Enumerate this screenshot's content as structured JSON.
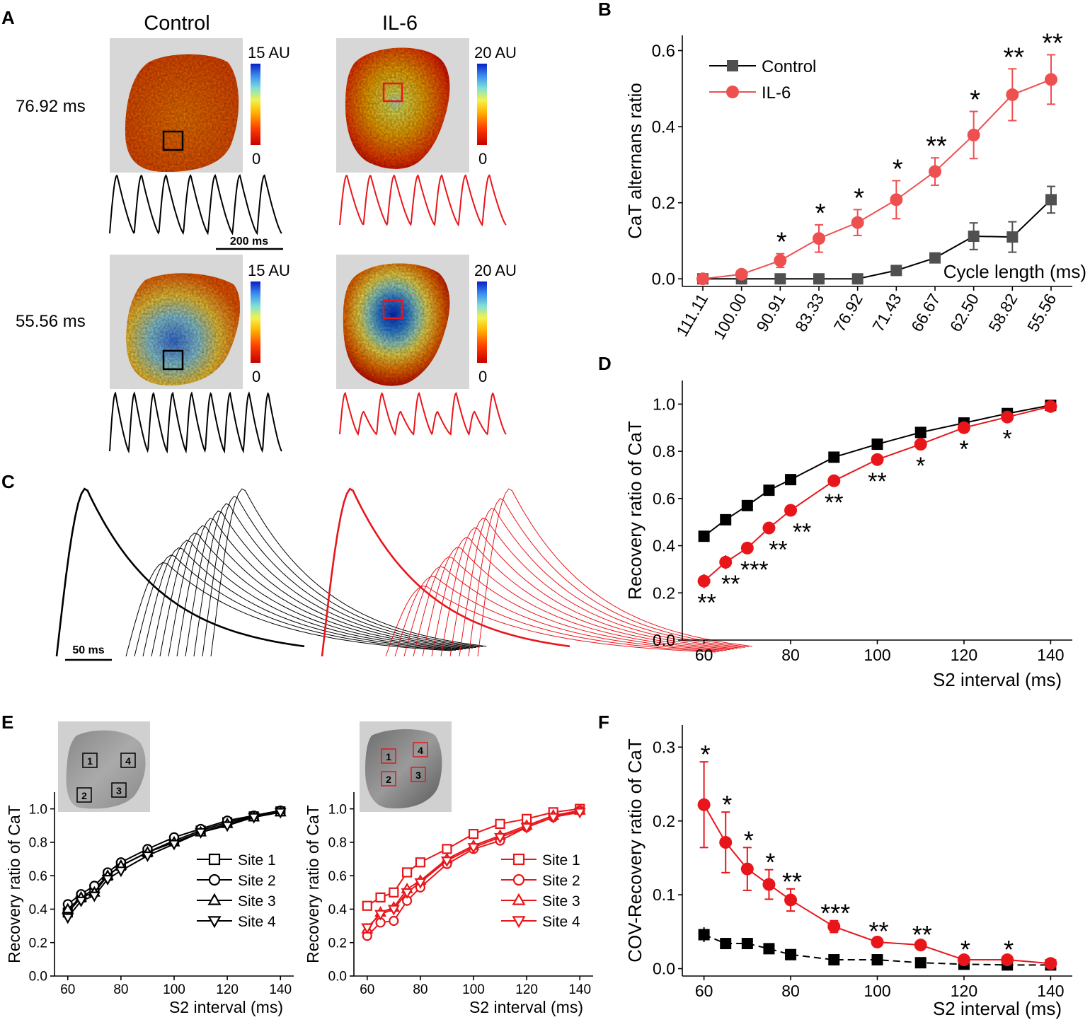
{
  "colors": {
    "control": "#000000",
    "il6": "#e8161b",
    "il6_light": "#ee4f4f",
    "control_gray": "#505050",
    "map_bg": "#d7d7d7"
  },
  "panel_letters": {
    "a": "A",
    "b": "B",
    "c": "C",
    "d": "D",
    "e": "E",
    "f": "F"
  },
  "panel_a": {
    "col_control": "Control",
    "col_il6": "IL-6",
    "row1_label": "76.92 ms",
    "row2_label": "55.56 ms",
    "cbar_control_max": "15 AU",
    "cbar_il6_max": "20 AU",
    "cbar_min": "0",
    "scalebar": "200 ms"
  },
  "panel_c": {
    "scalebar": "50 ms"
  },
  "panel_e": {
    "site_labels": [
      "1",
      "2",
      "3",
      "4"
    ],
    "legend": [
      "Site 1",
      "Site 2",
      "Site 3",
      "Site 4"
    ]
  },
  "chart_data": [
    {
      "id": "B",
      "type": "line",
      "ylabel": "CaT alternans ratio",
      "xlabel": "Cycle length (ms)",
      "categories": [
        "111.11",
        "100.00",
        "90.91",
        "83.33",
        "76.92",
        "71.43",
        "66.67",
        "62.50",
        "58.82",
        "55.56"
      ],
      "ylim": [
        -0.02,
        0.64
      ],
      "yticks": [
        "0.0",
        "0.2",
        "0.4",
        "0.6"
      ],
      "legend": [
        "Control",
        "IL-6"
      ],
      "series": [
        {
          "name": "Control",
          "values": [
            0.0,
            0.0,
            0.0,
            0.0,
            0.0,
            0.022,
            0.055,
            0.112,
            0.11,
            0.208
          ],
          "err": [
            0.004,
            0.004,
            0.004,
            0.004,
            0.004,
            0.01,
            0.012,
            0.035,
            0.04,
            0.035
          ]
        },
        {
          "name": "IL-6",
          "values": [
            0.0,
            0.012,
            0.048,
            0.106,
            0.148,
            0.208,
            0.282,
            0.378,
            0.484,
            0.524
          ],
          "err": [
            0.005,
            0.008,
            0.018,
            0.036,
            0.034,
            0.05,
            0.036,
            0.062,
            0.068,
            0.065
          ]
        }
      ],
      "annotations": [
        "",
        "",
        "*",
        "*",
        "*",
        "*",
        "**",
        "*",
        "**",
        "**"
      ]
    },
    {
      "id": "D",
      "type": "line",
      "ylabel": "Recovery ratio of CaT",
      "xlabel": "S2 interval (ms)",
      "x": [
        60,
        65,
        70,
        75,
        80,
        90,
        100,
        110,
        120,
        130,
        140
      ],
      "xlim": [
        55,
        145
      ],
      "xticks": [
        "60",
        "80",
        "100",
        "120",
        "140"
      ],
      "ylim": [
        0,
        1.1
      ],
      "yticks": [
        "0.0",
        "0.2",
        "0.4",
        "0.6",
        "0.8",
        "1.0"
      ],
      "series": [
        {
          "name": "Control",
          "values": [
            0.44,
            0.51,
            0.57,
            0.635,
            0.68,
            0.775,
            0.83,
            0.88,
            0.92,
            0.96,
            0.995
          ]
        },
        {
          "name": "IL-6",
          "values": [
            0.25,
            0.33,
            0.39,
            0.475,
            0.55,
            0.675,
            0.765,
            0.83,
            0.9,
            0.945,
            0.99
          ],
          "err": [
            0.03,
            0.03,
            0.025,
            0.02,
            0.02,
            0.02,
            0.02,
            0.02,
            0.02,
            0.02,
            0.015
          ]
        }
      ],
      "annotations": [
        "**",
        "**",
        "***",
        "**",
        "**",
        "**",
        "**",
        "*",
        "*",
        "*",
        ""
      ]
    },
    {
      "id": "E-control",
      "type": "line",
      "ylabel": "Recovery ratio of CaT",
      "xlabel": "S2 interval (ms)",
      "x": [
        60,
        65,
        70,
        75,
        80,
        90,
        100,
        110,
        120,
        130,
        140
      ],
      "xlim": [
        55,
        145
      ],
      "xticks": [
        "60",
        "80",
        "100",
        "120",
        "140"
      ],
      "ylim": [
        0,
        1.1
      ],
      "yticks": [
        "0.0",
        "0.2",
        "0.4",
        "0.6",
        "0.8",
        "1.0"
      ],
      "series": [
        {
          "name": "Site 1",
          "marker": "square",
          "values": [
            0.38,
            0.47,
            0.52,
            0.6,
            0.66,
            0.74,
            0.81,
            0.87,
            0.92,
            0.955,
            0.985
          ]
        },
        {
          "name": "Site 2",
          "marker": "circle",
          "values": [
            0.43,
            0.49,
            0.54,
            0.62,
            0.68,
            0.76,
            0.83,
            0.88,
            0.93,
            0.96,
            0.99
          ]
        },
        {
          "name": "Site 3",
          "marker": "triangle-up",
          "values": [
            0.4,
            0.47,
            0.5,
            0.6,
            0.66,
            0.74,
            0.8,
            0.86,
            0.91,
            0.95,
            0.98
          ]
        },
        {
          "name": "Site 4",
          "marker": "triangle-down",
          "values": [
            0.35,
            0.45,
            0.48,
            0.58,
            0.63,
            0.72,
            0.79,
            0.86,
            0.9,
            0.95,
            0.98
          ]
        }
      ]
    },
    {
      "id": "E-il6",
      "type": "line",
      "ylabel": "Recovery ratio of CaT",
      "xlabel": "S2 interval (ms)",
      "x": [
        60,
        65,
        70,
        75,
        80,
        90,
        100,
        110,
        120,
        130,
        140
      ],
      "xlim": [
        55,
        145
      ],
      "xticks": [
        "60",
        "80",
        "100",
        "120",
        "140"
      ],
      "ylim": [
        0,
        1.1
      ],
      "yticks": [
        "0.0",
        "0.2",
        "0.4",
        "0.6",
        "0.8",
        "1.0"
      ],
      "series": [
        {
          "name": "Site 1",
          "marker": "square",
          "values": [
            0.42,
            0.47,
            0.5,
            0.62,
            0.68,
            0.76,
            0.85,
            0.91,
            0.94,
            0.98,
            1.0
          ]
        },
        {
          "name": "Site 2",
          "marker": "circle",
          "values": [
            0.24,
            0.32,
            0.33,
            0.45,
            0.53,
            0.67,
            0.76,
            0.81,
            0.89,
            0.95,
            0.99
          ]
        },
        {
          "name": "Site 3",
          "marker": "triangle-up",
          "values": [
            0.28,
            0.38,
            0.41,
            0.52,
            0.57,
            0.7,
            0.78,
            0.84,
            0.9,
            0.96,
            0.99
          ]
        },
        {
          "name": "Site 4",
          "marker": "triangle-down",
          "values": [
            0.29,
            0.37,
            0.4,
            0.5,
            0.56,
            0.69,
            0.77,
            0.83,
            0.89,
            0.95,
            0.98
          ]
        }
      ]
    },
    {
      "id": "F",
      "type": "line",
      "ylabel": "COV-Recovery ratio of CaT",
      "xlabel": "S2 interval (ms)",
      "x": [
        60,
        65,
        70,
        75,
        80,
        90,
        100,
        110,
        120,
        130,
        140
      ],
      "xlim": [
        55,
        145
      ],
      "xticks": [
        "60",
        "80",
        "100",
        "120",
        "140"
      ],
      "ylim": [
        -0.01,
        0.33
      ],
      "yticks": [
        "0.0",
        "0.1",
        "0.2",
        "0.3"
      ],
      "series": [
        {
          "name": "Control",
          "values": [
            0.046,
            0.034,
            0.034,
            0.027,
            0.019,
            0.012,
            0.012,
            0.008,
            0.006,
            0.005,
            0.005
          ],
          "err": [
            0.01,
            0.004,
            0.004,
            0.004,
            0.003,
            0.003,
            0.002,
            0.002,
            0.002,
            0.002,
            0.002
          ]
        },
        {
          "name": "IL-6",
          "values": [
            0.222,
            0.171,
            0.135,
            0.114,
            0.093,
            0.057,
            0.036,
            0.032,
            0.012,
            0.012,
            0.007
          ],
          "err": [
            0.058,
            0.041,
            0.029,
            0.02,
            0.015,
            0.008,
            0.005,
            0.004,
            0.004,
            0.004,
            0.003
          ]
        }
      ],
      "annotations": [
        "*",
        "*",
        "*",
        "*",
        "**",
        "***",
        "**",
        "**",
        "*",
        "*",
        ""
      ]
    }
  ]
}
